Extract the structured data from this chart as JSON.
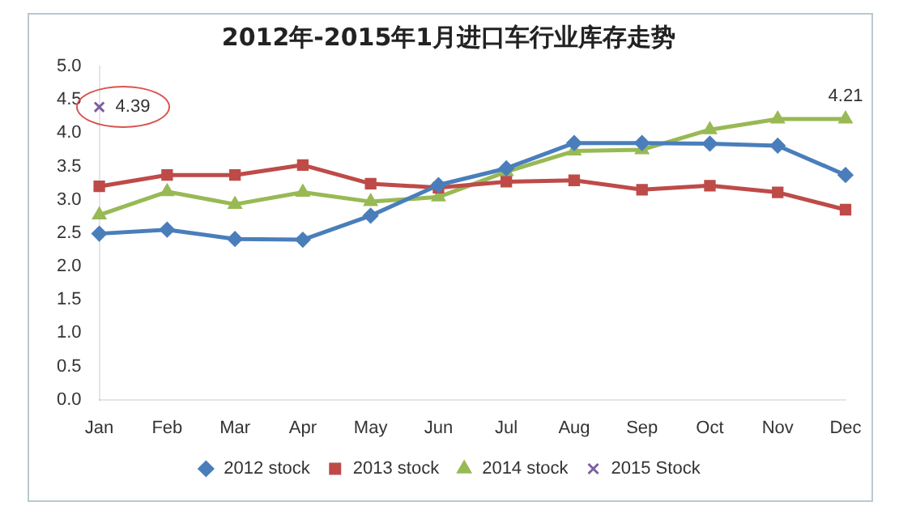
{
  "chart_data": {
    "type": "line",
    "title": "2012年-2015年1月进口车行业库存走势",
    "categories": [
      "Jan",
      "Feb",
      "Mar",
      "Apr",
      "May",
      "Jun",
      "Jul",
      "Aug",
      "Sep",
      "Oct",
      "Nov",
      "Dec"
    ],
    "series": [
      {
        "name": "2012 stock",
        "color": "#4a7ebb",
        "marker": "diamond",
        "values": [
          2.49,
          2.55,
          2.41,
          2.4,
          2.76,
          3.22,
          3.47,
          3.85,
          3.85,
          3.84,
          3.81,
          3.37
        ]
      },
      {
        "name": "2013 stock",
        "color": "#be4b48",
        "marker": "square",
        "values": [
          3.2,
          3.37,
          3.37,
          3.52,
          3.24,
          3.18,
          3.27,
          3.29,
          3.15,
          3.21,
          3.11,
          2.85
        ]
      },
      {
        "name": "2014 stock",
        "color": "#98b954",
        "marker": "triangle",
        "values": [
          2.77,
          3.12,
          2.93,
          3.11,
          2.97,
          3.04,
          3.42,
          3.73,
          3.75,
          4.05,
          4.21,
          4.21
        ]
      },
      {
        "name": "2015 Stock",
        "color": "#7d60a0",
        "marker": "cross",
        "values": [
          4.39,
          null,
          null,
          null,
          null,
          null,
          null,
          null,
          null,
          null,
          null,
          null
        ],
        "value_labels": [
          "4.39",
          null,
          null,
          null,
          null,
          null,
          null,
          null,
          null,
          null,
          null,
          null
        ]
      }
    ],
    "annotations": [
      {
        "text": "4.21",
        "x": "Dec",
        "y": 4.21
      }
    ],
    "ylim": [
      0,
      5
    ],
    "yticks": [
      {
        "value": 0,
        "label": "0.0"
      },
      {
        "value": 0.5,
        "label": "0.5"
      },
      {
        "value": 1,
        "label": "1.0"
      },
      {
        "value": 1.5,
        "label": "1.5"
      },
      {
        "value": 2,
        "label": "2.0"
      },
      {
        "value": 2.5,
        "label": "2.5"
      },
      {
        "value": 3,
        "label": "3.0"
      },
      {
        "value": 3.5,
        "label": "3.5"
      },
      {
        "value": 4,
        "label": "4.0"
      },
      {
        "value": 4.5,
        "label": "4.5"
      },
      {
        "value": 5,
        "label": "5.0"
      }
    ],
    "grid": false,
    "legend": "bottom"
  }
}
